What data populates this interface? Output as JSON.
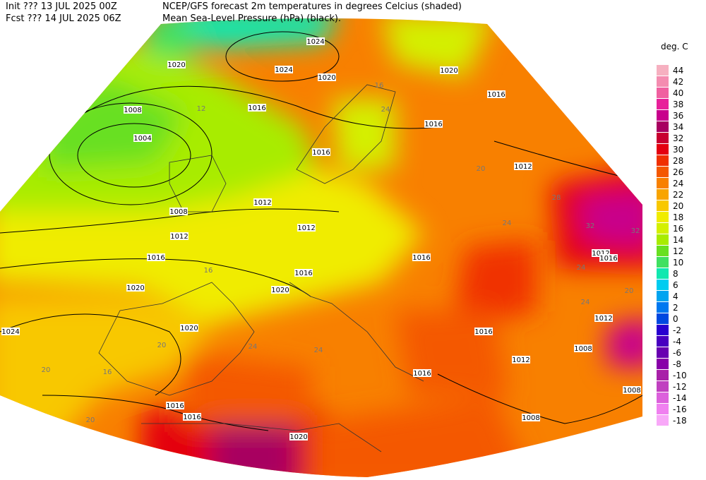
{
  "header": {
    "init": "Init  ??? 13 JUL 2025 00Z",
    "fcst": "Fcst ??? 14 JUL 2025 06Z",
    "title": "NCEP/GFS forecast 2m temperatures in degrees Celcius (shaded)",
    "subtitle": "Mean Sea-Level Pressure (hPa) (black)."
  },
  "legend": {
    "title": "deg. C",
    "items": [
      {
        "label": "44",
        "color": "#f6b0c0"
      },
      {
        "label": "42",
        "color": "#f48cb0"
      },
      {
        "label": "40",
        "color": "#f060a0"
      },
      {
        "label": "38",
        "color": "#e8209a"
      },
      {
        "label": "36",
        "color": "#c8008c"
      },
      {
        "label": "34",
        "color": "#a80060"
      },
      {
        "label": "32",
        "color": "#c80030"
      },
      {
        "label": "30",
        "color": "#e40010"
      },
      {
        "label": "28",
        "color": "#f03000"
      },
      {
        "label": "26",
        "color": "#f45800"
      },
      {
        "label": "24",
        "color": "#f88000"
      },
      {
        "label": "22",
        "color": "#f8a400"
      },
      {
        "label": "20",
        "color": "#f8c800"
      },
      {
        "label": "18",
        "color": "#f0ec00"
      },
      {
        "label": "16",
        "color": "#d4f000"
      },
      {
        "label": "14",
        "color": "#a8ec00"
      },
      {
        "label": "12",
        "color": "#68e020"
      },
      {
        "label": "10",
        "color": "#40e060"
      },
      {
        "label": "8",
        "color": "#10e8b0"
      },
      {
        "label": "6",
        "color": "#00ccf0"
      },
      {
        "label": "4",
        "color": "#00a4f0"
      },
      {
        "label": "2",
        "color": "#0078f0"
      },
      {
        "label": "0",
        "color": "#0048e0"
      },
      {
        "label": "-2",
        "color": "#2800d0"
      },
      {
        "label": "-4",
        "color": "#4800c0"
      },
      {
        "label": "-6",
        "color": "#6800b0"
      },
      {
        "label": "-8",
        "color": "#8800a8"
      },
      {
        "label": "-10",
        "color": "#a820a8"
      },
      {
        "label": "-12",
        "color": "#c040c0"
      },
      {
        "label": "-14",
        "color": "#dc60dc"
      },
      {
        "label": "-16",
        "color": "#f080f0"
      },
      {
        "label": "-18",
        "color": "#f8a8f8"
      }
    ]
  },
  "pressure_labels": [
    "1024",
    "1020",
    "1024",
    "1020",
    "1008",
    "1016",
    "1004",
    "1016",
    "1016",
    "1016",
    "1012",
    "1012",
    "1008",
    "1012",
    "1012",
    "1016",
    "1016",
    "1016",
    "1020",
    "1020",
    "1012",
    "1016",
    "1024",
    "1020",
    "1016",
    "1012",
    "1008",
    "1012",
    "1016",
    "1008",
    "1016",
    "1016",
    "1008",
    "1020",
    "1020"
  ],
  "temperature_labels": [
    "12",
    "16",
    "24",
    "20",
    "24",
    "28",
    "32",
    "32",
    "24",
    "20",
    "24",
    "24",
    "24",
    "20",
    "16",
    "20",
    "16",
    "20"
  ]
}
